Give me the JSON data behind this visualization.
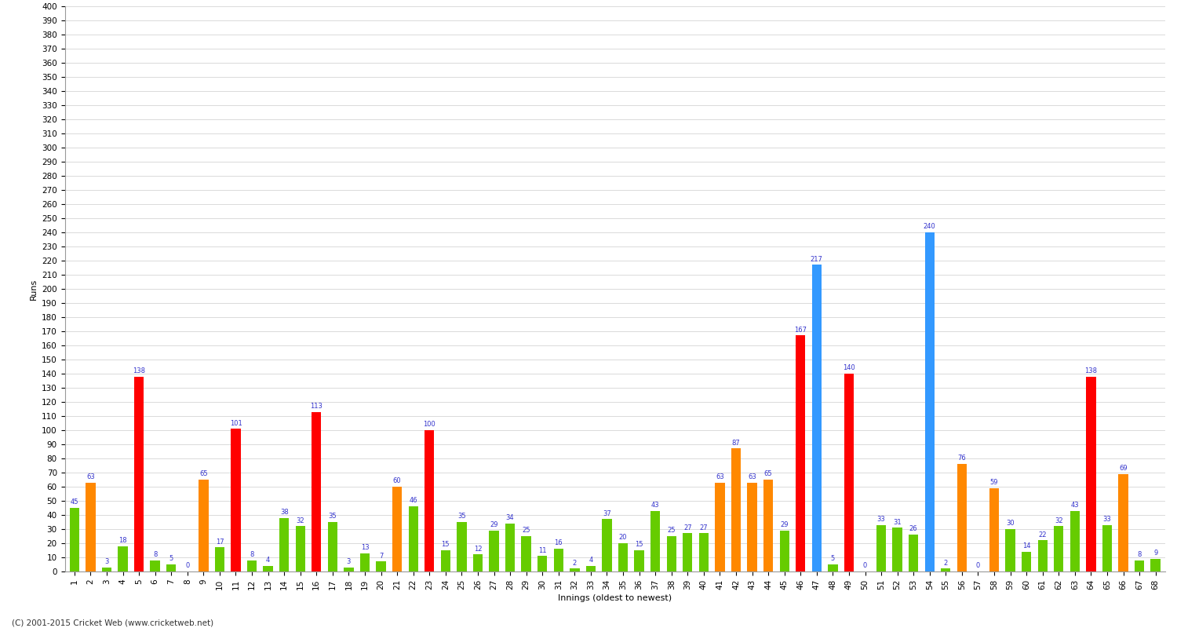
{
  "xlabel": "Innings (oldest to newest)",
  "ylabel": "Runs",
  "footer": "(C) 2001-2015 Cricket Web (www.cricketweb.net)",
  "ylim": [
    0,
    400
  ],
  "yticks": [
    0,
    10,
    20,
    30,
    40,
    50,
    60,
    70,
    80,
    90,
    100,
    110,
    120,
    130,
    140,
    150,
    160,
    170,
    180,
    190,
    200,
    210,
    220,
    230,
    240,
    250,
    260,
    270,
    280,
    290,
    300,
    310,
    320,
    330,
    340,
    350,
    360,
    370,
    380,
    390,
    400
  ],
  "innings": [
    {
      "num": "1",
      "runs": 45,
      "color": "#66cc00"
    },
    {
      "num": "2",
      "runs": 63,
      "color": "#ff8800"
    },
    {
      "num": "3",
      "runs": 3,
      "color": "#66cc00"
    },
    {
      "num": "4",
      "runs": 18,
      "color": "#66cc00"
    },
    {
      "num": "5",
      "runs": 138,
      "color": "#ff0000"
    },
    {
      "num": "6",
      "runs": 8,
      "color": "#66cc00"
    },
    {
      "num": "7",
      "runs": 5,
      "color": "#66cc00"
    },
    {
      "num": "8",
      "runs": 0,
      "color": "#66cc00"
    },
    {
      "num": "9",
      "runs": 65,
      "color": "#ff8800"
    },
    {
      "num": "10",
      "runs": 17,
      "color": "#66cc00"
    },
    {
      "num": "11",
      "runs": 101,
      "color": "#ff0000"
    },
    {
      "num": "12",
      "runs": 8,
      "color": "#66cc00"
    },
    {
      "num": "13",
      "runs": 4,
      "color": "#66cc00"
    },
    {
      "num": "14",
      "runs": 38,
      "color": "#66cc00"
    },
    {
      "num": "15",
      "runs": 32,
      "color": "#66cc00"
    },
    {
      "num": "16",
      "runs": 113,
      "color": "#ff0000"
    },
    {
      "num": "17",
      "runs": 35,
      "color": "#66cc00"
    },
    {
      "num": "18",
      "runs": 3,
      "color": "#66cc00"
    },
    {
      "num": "19",
      "runs": 13,
      "color": "#66cc00"
    },
    {
      "num": "20",
      "runs": 7,
      "color": "#66cc00"
    },
    {
      "num": "21",
      "runs": 60,
      "color": "#ff8800"
    },
    {
      "num": "22",
      "runs": 46,
      "color": "#66cc00"
    },
    {
      "num": "23",
      "runs": 100,
      "color": "#ff0000"
    },
    {
      "num": "24",
      "runs": 15,
      "color": "#66cc00"
    },
    {
      "num": "25",
      "runs": 35,
      "color": "#66cc00"
    },
    {
      "num": "26",
      "runs": 12,
      "color": "#66cc00"
    },
    {
      "num": "27",
      "runs": 29,
      "color": "#66cc00"
    },
    {
      "num": "28",
      "runs": 34,
      "color": "#66cc00"
    },
    {
      "num": "29",
      "runs": 25,
      "color": "#66cc00"
    },
    {
      "num": "30",
      "runs": 11,
      "color": "#66cc00"
    },
    {
      "num": "31",
      "runs": 16,
      "color": "#66cc00"
    },
    {
      "num": "32",
      "runs": 2,
      "color": "#66cc00"
    },
    {
      "num": "33",
      "runs": 4,
      "color": "#66cc00"
    },
    {
      "num": "34",
      "runs": 37,
      "color": "#66cc00"
    },
    {
      "num": "35",
      "runs": 20,
      "color": "#66cc00"
    },
    {
      "num": "36",
      "runs": 15,
      "color": "#66cc00"
    },
    {
      "num": "37",
      "runs": 43,
      "color": "#66cc00"
    },
    {
      "num": "38",
      "runs": 25,
      "color": "#66cc00"
    },
    {
      "num": "39",
      "runs": 27,
      "color": "#66cc00"
    },
    {
      "num": "40",
      "runs": 27,
      "color": "#66cc00"
    },
    {
      "num": "41",
      "runs": 63,
      "color": "#ff8800"
    },
    {
      "num": "42",
      "runs": 87,
      "color": "#ff8800"
    },
    {
      "num": "43",
      "runs": 63,
      "color": "#ff8800"
    },
    {
      "num": "44",
      "runs": 65,
      "color": "#ff8800"
    },
    {
      "num": "45",
      "runs": 29,
      "color": "#66cc00"
    },
    {
      "num": "46",
      "runs": 167,
      "color": "#ff0000"
    },
    {
      "num": "47",
      "runs": 217,
      "color": "#3399ff"
    },
    {
      "num": "48",
      "runs": 5,
      "color": "#66cc00"
    },
    {
      "num": "49",
      "runs": 140,
      "color": "#ff0000"
    },
    {
      "num": "50",
      "runs": 0,
      "color": "#66cc00"
    },
    {
      "num": "51",
      "runs": 33,
      "color": "#66cc00"
    },
    {
      "num": "52",
      "runs": 31,
      "color": "#66cc00"
    },
    {
      "num": "53",
      "runs": 26,
      "color": "#66cc00"
    },
    {
      "num": "54",
      "runs": 240,
      "color": "#3399ff"
    },
    {
      "num": "55",
      "runs": 2,
      "color": "#66cc00"
    },
    {
      "num": "56",
      "runs": 76,
      "color": "#ff8800"
    },
    {
      "num": "57",
      "runs": 0,
      "color": "#66cc00"
    },
    {
      "num": "58",
      "runs": 59,
      "color": "#ff8800"
    },
    {
      "num": "59",
      "runs": 30,
      "color": "#66cc00"
    },
    {
      "num": "60",
      "runs": 14,
      "color": "#66cc00"
    },
    {
      "num": "61",
      "runs": 22,
      "color": "#66cc00"
    },
    {
      "num": "62",
      "runs": 32,
      "color": "#66cc00"
    },
    {
      "num": "63",
      "runs": 43,
      "color": "#66cc00"
    },
    {
      "num": "64",
      "runs": 138,
      "color": "#ff0000"
    },
    {
      "num": "65",
      "runs": 33,
      "color": "#66cc00"
    },
    {
      "num": "66",
      "runs": 69,
      "color": "#ff8800"
    },
    {
      "num": "67",
      "runs": 8,
      "color": "#66cc00"
    },
    {
      "num": "68",
      "runs": 9,
      "color": "#66cc00"
    }
  ],
  "bg_color": "#ffffff",
  "grid_color": "#cccccc",
  "bar_width": 0.6,
  "label_color": "#3333cc",
  "label_fontsize": 6.0,
  "tick_fontsize": 7.5,
  "ylabel_fontsize": 8,
  "xlabel_fontsize": 8
}
